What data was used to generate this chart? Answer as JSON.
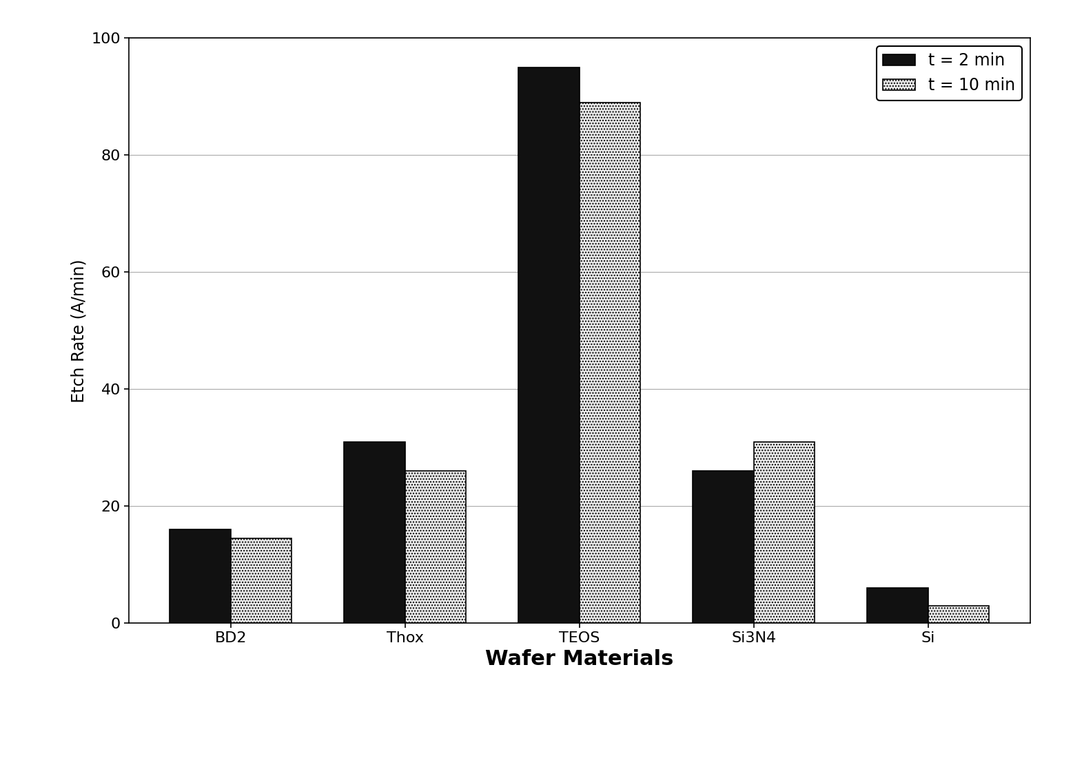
{
  "categories": [
    "BD2",
    "Thox",
    "TEOS",
    "Si3N4",
    "Si"
  ],
  "values_2min": [
    16,
    31,
    95,
    26,
    6
  ],
  "values_10min": [
    14.5,
    26,
    89,
    31,
    3
  ],
  "bar_color_2min": "#111111",
  "bar_color_10min": "#e8e8e8",
  "bar_edgecolor": "#000000",
  "hatch_10min": "....",
  "ylabel": "Etch Rate (A/min)",
  "xlabel": "Wafer Materials",
  "ylim": [
    0,
    100
  ],
  "yticks": [
    0,
    20,
    40,
    60,
    80,
    100
  ],
  "legend_labels": [
    "t = 2 min",
    "t = 10 min"
  ],
  "background_color": "#ffffff",
  "bar_width": 0.35,
  "ylabel_fontsize": 17,
  "xlabel_fontsize": 22,
  "xlabel_fontweight": "bold",
  "tick_fontsize": 16,
  "legend_fontsize": 17,
  "grid_color": "#aaaaaa",
  "grid_linewidth": 0.8
}
